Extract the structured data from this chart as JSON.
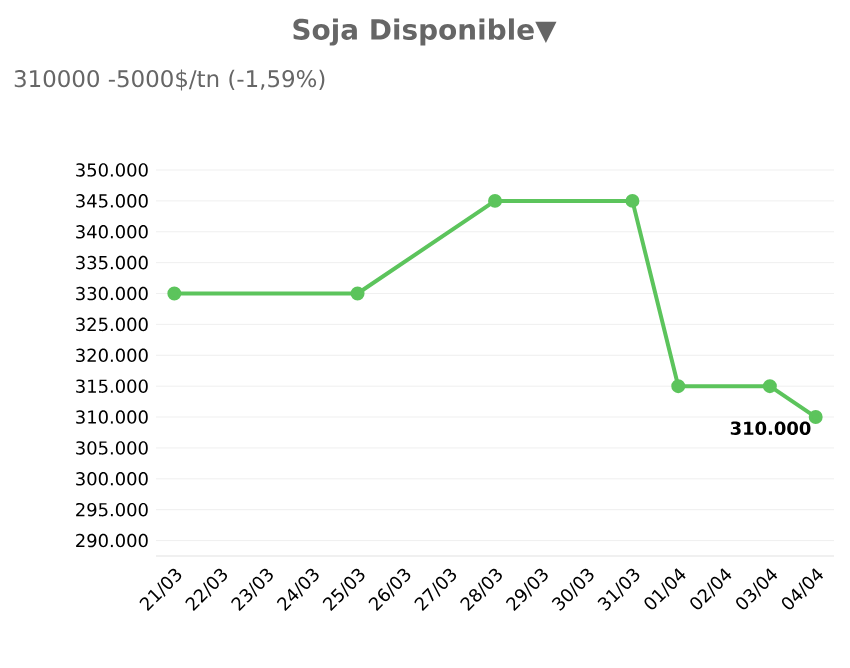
{
  "chart_data": {
    "type": "line",
    "title": "Soja Disponible▼",
    "subtitle": "310000 -5000$/tn (-1,59%)",
    "categories": [
      "21/03",
      "22/03",
      "23/03",
      "24/03",
      "25/03",
      "26/03",
      "27/03",
      "28/03",
      "29/03",
      "30/03",
      "31/03",
      "01/04",
      "02/04",
      "03/04",
      "04/04"
    ],
    "values": [
      330000,
      null,
      null,
      null,
      330000,
      null,
      null,
      345000,
      null,
      null,
      345000,
      315000,
      null,
      315000,
      310000
    ],
    "color": "#5cc45c",
    "marker": "circle",
    "grid": "y",
    "ylim": [
      287500,
      350000
    ],
    "yticks": [
      {
        "value": 290000,
        "label": "290.000"
      },
      {
        "value": 295000,
        "label": "295.000"
      },
      {
        "value": 300000,
        "label": "300.000"
      },
      {
        "value": 305000,
        "label": "305.000"
      },
      {
        "value": 310000,
        "label": "310.000"
      },
      {
        "value": 315000,
        "label": "315.000"
      },
      {
        "value": 320000,
        "label": "320.000"
      },
      {
        "value": 325000,
        "label": "325.000"
      },
      {
        "value": 330000,
        "label": "330.000"
      },
      {
        "value": 335000,
        "label": "335.000"
      },
      {
        "value": 340000,
        "label": "340.000"
      },
      {
        "value": 345000,
        "label": "345.000"
      },
      {
        "value": 350000,
        "label": "350.000"
      }
    ],
    "annotations": [
      {
        "text": "310.000",
        "x": "04/04",
        "y": 310000
      }
    ]
  }
}
